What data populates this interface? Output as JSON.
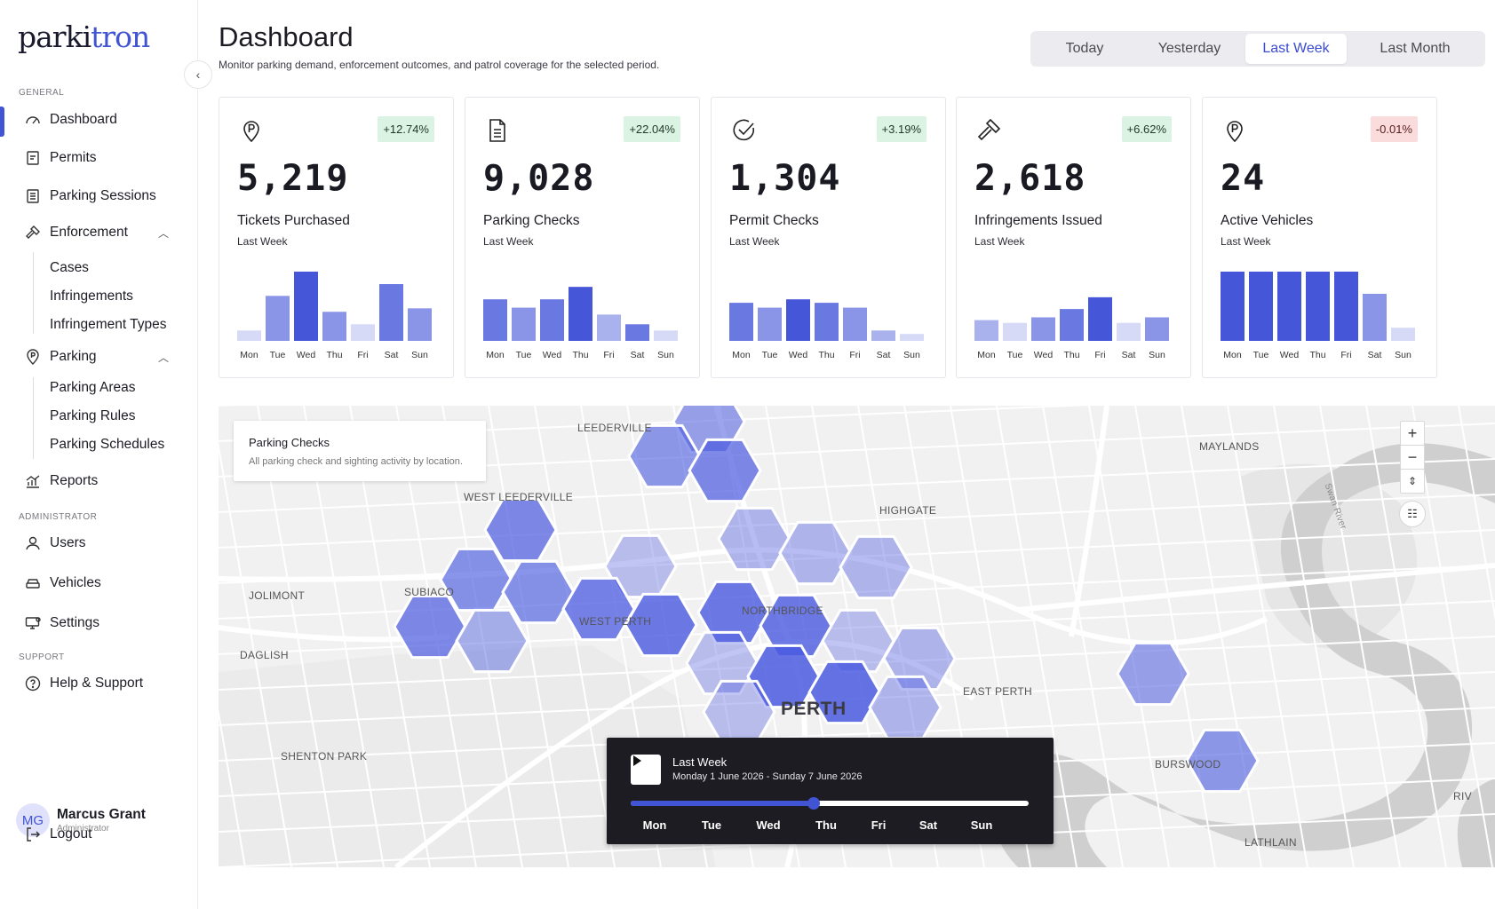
{
  "brand": {
    "prefix": "parki",
    "accent": "tron"
  },
  "sidebar": {
    "sections": {
      "general": "GENERAL",
      "administrator": "ADMINISTRATOR",
      "support": "SUPPORT"
    },
    "items": {
      "dashboard": "Dashboard",
      "permits": "Permits",
      "parking_sessions": "Parking Sessions",
      "enforcement": "Enforcement",
      "cases": "Cases",
      "infringements": "Infringements",
      "infringement_types": "Infringement Types",
      "parking": "Parking",
      "parking_areas": "Parking Areas",
      "parking_rules": "Parking Rules",
      "parking_schedules": "Parking Schedules",
      "reports": "Reports",
      "users": "Users",
      "vehicles": "Vehicles",
      "settings": "Settings",
      "help": "Help & Support"
    },
    "user": {
      "initials": "MG",
      "name": "Marcus Grant",
      "role": "Administrator"
    },
    "logout": "Logout"
  },
  "header": {
    "title": "Dashboard",
    "subtitle": "Monitor parking demand, enforcement outcomes, and patrol coverage for the selected period.",
    "periods": [
      "Today",
      "Yesterday",
      "Last Week",
      "Last Month"
    ],
    "active_period": "Last Week"
  },
  "cards": [
    {
      "icon": "parking-pin-icon",
      "change": "+12.74%",
      "trend": "up",
      "value": "5,219",
      "label": "Tickets Purchased",
      "period": "Last Week",
      "bars": [
        0.15,
        0.65,
        1.0,
        0.42,
        0.24,
        0.82,
        0.47
      ],
      "shades": [
        0.25,
        0.65,
        1.0,
        0.65,
        0.3,
        0.85,
        0.65
      ]
    },
    {
      "icon": "document-icon",
      "change": "+22.04%",
      "trend": "up",
      "value": "9,028",
      "label": "Parking Checks",
      "period": "Last Week",
      "bars": [
        0.6,
        0.48,
        0.6,
        0.78,
        0.38,
        0.24,
        0.15
      ],
      "shades": [
        0.85,
        0.65,
        0.85,
        1.0,
        0.45,
        0.8,
        0.3
      ]
    },
    {
      "icon": "check-circle-icon",
      "change": "+3.19%",
      "trend": "up",
      "value": "1,304",
      "label": "Permit Checks",
      "period": "Last Week",
      "bars": [
        0.55,
        0.48,
        0.6,
        0.55,
        0.48,
        0.15,
        0.1
      ],
      "shades": [
        0.85,
        0.65,
        1.0,
        0.85,
        0.65,
        0.45,
        0.3
      ]
    },
    {
      "icon": "gavel-icon",
      "change": "+6.62%",
      "trend": "up",
      "value": "2,618",
      "label": "Infringements Issued",
      "period": "Last Week",
      "bars": [
        0.3,
        0.26,
        0.34,
        0.46,
        0.63,
        0.26,
        0.34
      ],
      "shades": [
        0.45,
        0.3,
        0.65,
        0.85,
        1.0,
        0.3,
        0.65
      ]
    },
    {
      "icon": "parking-pin-icon",
      "change": "-0.01%",
      "trend": "down",
      "value": "24",
      "label": "Active Vehicles",
      "period": "Last Week",
      "bars": [
        1.0,
        1.0,
        1.0,
        1.0,
        1.0,
        0.68,
        0.19
      ],
      "shades": [
        1.0,
        1.0,
        1.0,
        1.0,
        1.0,
        0.65,
        0.3
      ]
    }
  ],
  "days": [
    "Mon",
    "Tue",
    "Wed",
    "Thu",
    "Fri",
    "Sat",
    "Sun"
  ],
  "map": {
    "card_title": "Parking Checks",
    "card_subtitle": "All parking check and sighting activity by location.",
    "labels": {
      "leederville": "LEEDERVILLE",
      "maylands": "MAYLANDS",
      "west_leederville": "WEST LEEDERVILLE",
      "highgate": "HIGHGATE",
      "subiaco": "SUBIACO",
      "jolimont": "JOLIMONT",
      "northbridge": "NORTHBRIDGE",
      "west_perth": "WEST PERTH",
      "daglish": "DAGLISH",
      "east_perth": "EAST PERTH",
      "perth": "PERTH",
      "shenton_park": "SHENTON PARK",
      "burswood": "BURSWOOD",
      "riv": "RIV",
      "lathlain": "LATHLAIN",
      "swan_river": "Swan River"
    },
    "zoom_in": "+",
    "zoom_out": "−"
  },
  "timeline": {
    "title": "Last Week",
    "range": "Monday 1 June 2026 - Sunday 7 June 2026",
    "progress": 0.46,
    "days": [
      "Mon",
      "Tue",
      "Wed",
      "Thu",
      "Fri",
      "Sat",
      "Sun"
    ]
  },
  "colors": {
    "accent": "#4054d4",
    "badge_up": "#daf3e2",
    "badge_down": "#fadcdc",
    "hex_fill": "#4a5ae0"
  }
}
